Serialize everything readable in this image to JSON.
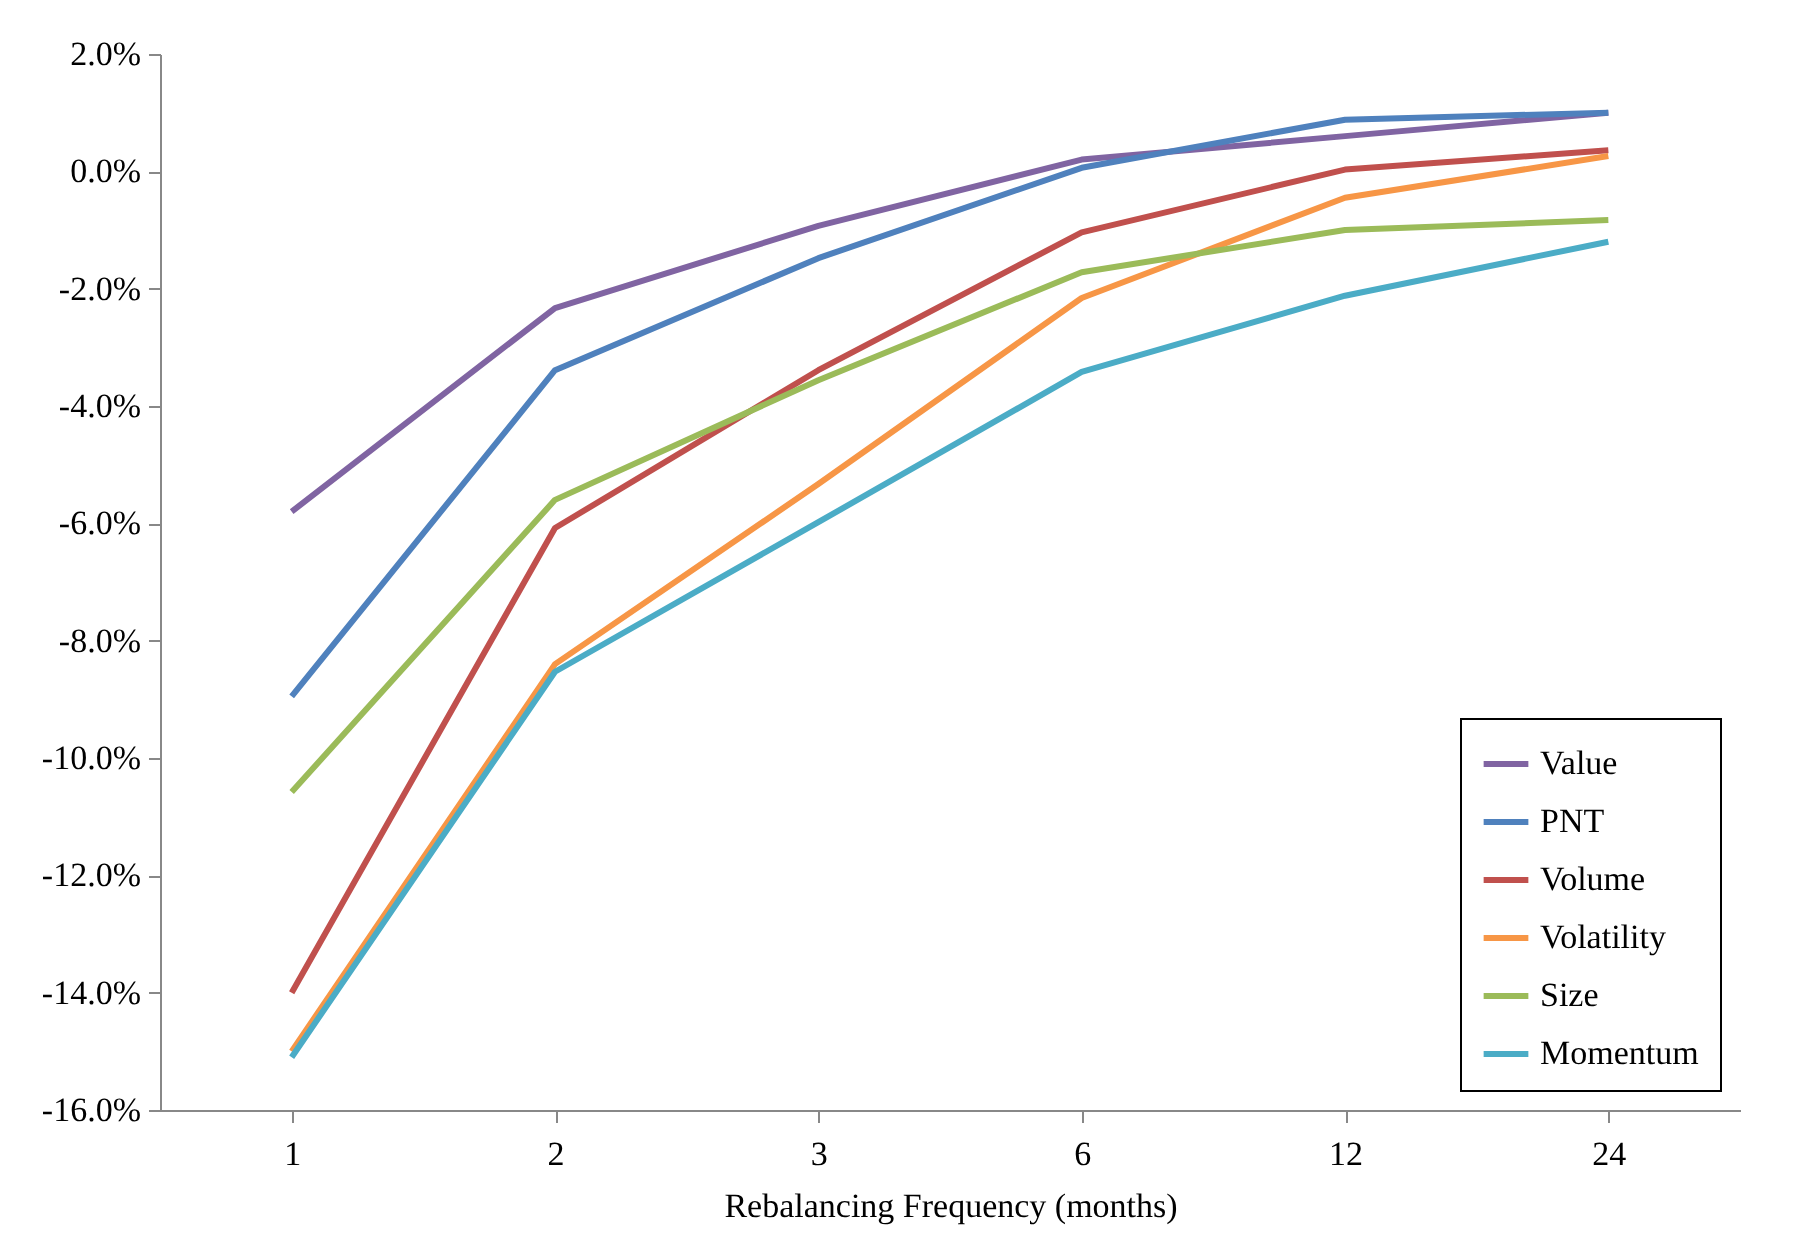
{
  "chart_data": {
    "type": "line",
    "xlabel": "Rebalancing Frequency (months)",
    "categories": [
      "1",
      "2",
      "3",
      "6",
      "12",
      "24"
    ],
    "ylim": [
      -16,
      2
    ],
    "yticks": [
      {
        "value": -16,
        "label": "-16.0%"
      },
      {
        "value": -14,
        "label": "-14.0%"
      },
      {
        "value": -12,
        "label": "-12.0%"
      },
      {
        "value": -10,
        "label": "-10.0%"
      },
      {
        "value": -8,
        "label": "-8.0%"
      },
      {
        "value": -6,
        "label": "-6.0%"
      },
      {
        "value": -4,
        "label": "-4.0%"
      },
      {
        "value": -2,
        "label": "-2.0%"
      },
      {
        "value": 0,
        "label": "0.0%"
      },
      {
        "value": 2,
        "label": "2.0%"
      }
    ],
    "grid": false,
    "legend": "bottom right",
    "marker": "none",
    "line_style": "solid",
    "series": [
      {
        "name": "Value",
        "color": "#8064a2",
        "values": [
          -5.8,
          -2.33,
          -0.93,
          0.2,
          0.6,
          1.0
        ]
      },
      {
        "name": "PNT",
        "color": "#4f81bd",
        "values": [
          -8.95,
          -3.39,
          -1.48,
          0.06,
          0.88,
          1.0
        ]
      },
      {
        "name": "Volume",
        "color": "#c0504d",
        "values": [
          -14.0,
          -6.08,
          -3.39,
          -1.04,
          0.03,
          0.36
        ]
      },
      {
        "name": "Volatility",
        "color": "#f79646",
        "values": [
          -15.0,
          -8.4,
          -5.33,
          -2.16,
          -0.45,
          0.26
        ]
      },
      {
        "name": "Size",
        "color": "#9bbb59",
        "values": [
          -10.58,
          -5.6,
          -3.56,
          -1.72,
          -1.0,
          -0.83
        ]
      },
      {
        "name": "Momentum",
        "color": "#4bacc6",
        "values": [
          -15.1,
          -8.53,
          -5.98,
          -3.42,
          -2.12,
          -1.2
        ]
      }
    ]
  }
}
